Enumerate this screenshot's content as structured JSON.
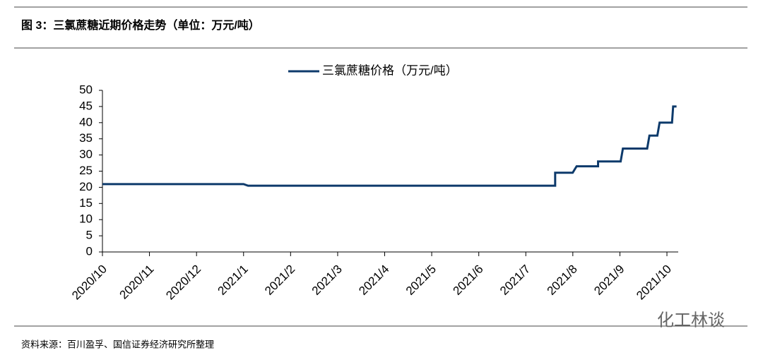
{
  "chart_data": {
    "type": "line",
    "title": "图 3：三氯蔗糖近期价格走势（单位：万元/吨）",
    "source": "资料来源：百川盈孚、国信证券经济研究所整理",
    "watermark": "化工林谈",
    "x": [
      2020.75,
      2021.0,
      2021.008,
      2021.552,
      2021.552,
      2021.583,
      2021.59,
      2021.628,
      2021.628,
      2021.668,
      2021.672,
      2021.715,
      2021.719,
      2021.733,
      2021.737,
      2021.759,
      2021.761,
      2021.767
    ],
    "series": [
      {
        "name": "三氯蔗糖价格（万元/吨）",
        "color": "#0d3a6b",
        "values": [
          21,
          21,
          20.5,
          20.5,
          24.5,
          24.5,
          26.5,
          26.5,
          28,
          28,
          32,
          32,
          36,
          36,
          40,
          40,
          45,
          45
        ]
      }
    ],
    "xlim": [
      2020.75,
      2021.77
    ],
    "xticks": [
      {
        "value": 2020.75,
        "label": "2020/10"
      },
      {
        "value": 2020.8333,
        "label": "2020/11"
      },
      {
        "value": 2020.9167,
        "label": "2020/12"
      },
      {
        "value": 2021.0,
        "label": "2021/1"
      },
      {
        "value": 2021.0833,
        "label": "2021/2"
      },
      {
        "value": 2021.1667,
        "label": "2021/3"
      },
      {
        "value": 2021.25,
        "label": "2021/4"
      },
      {
        "value": 2021.3333,
        "label": "2021/5"
      },
      {
        "value": 2021.4167,
        "label": "2021/6"
      },
      {
        "value": 2021.5,
        "label": "2021/7"
      },
      {
        "value": 2021.5833,
        "label": "2021/8"
      },
      {
        "value": 2021.6667,
        "label": "2021/9"
      },
      {
        "value": 2021.75,
        "label": "2021/10"
      }
    ],
    "ylim": [
      0,
      50
    ],
    "yticks": [
      0,
      5,
      10,
      15,
      20,
      25,
      30,
      35,
      40,
      45,
      50
    ],
    "legend": "top"
  }
}
